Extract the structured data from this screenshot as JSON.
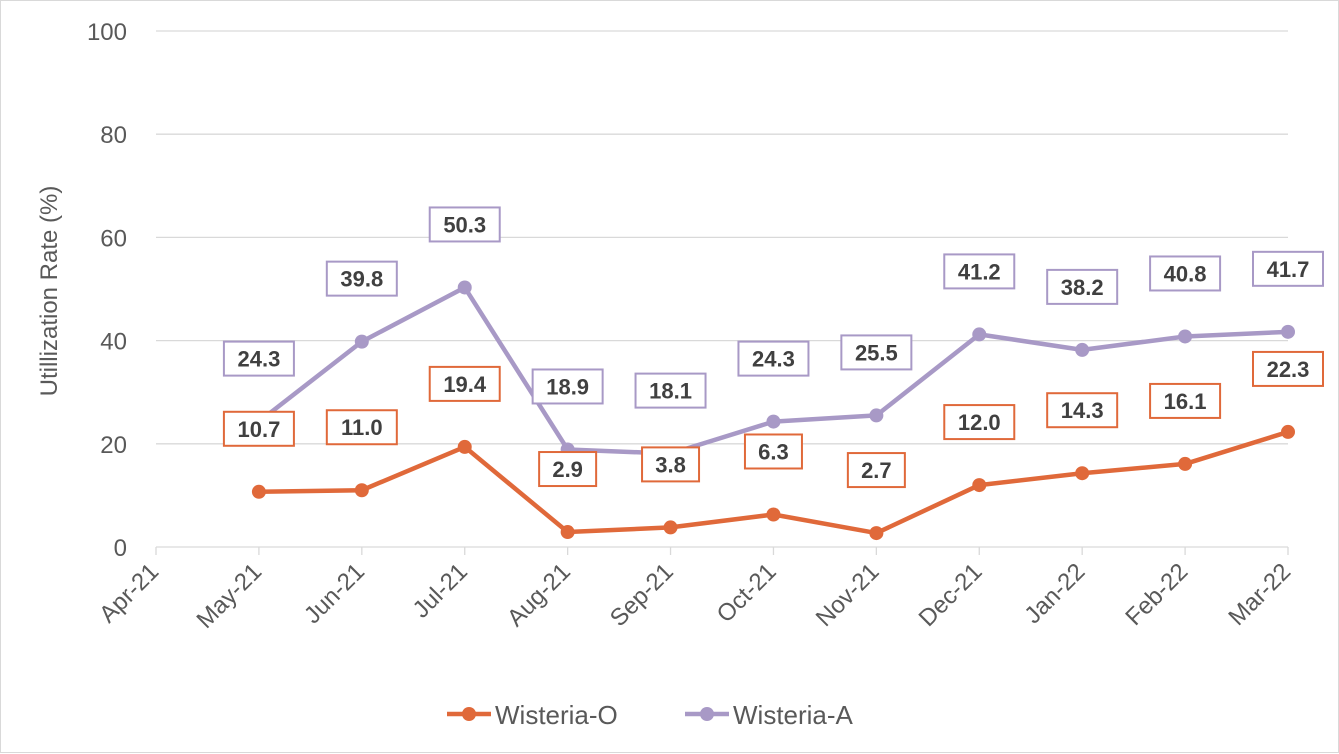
{
  "chart_data": {
    "type": "line",
    "ylabel": "Utillization Rate (%)",
    "xlabel": "",
    "ylim": [
      0,
      100
    ],
    "yticks": [
      0,
      20,
      40,
      60,
      80,
      100
    ],
    "grid": "horizontal",
    "legend_position": "bottom",
    "categories": [
      "Apr-21",
      "May-21",
      "Jun-21",
      "Jul-21",
      "Aug-21",
      "Sep-21",
      "Oct-21",
      "Nov-21",
      "Dec-21",
      "Jan-22",
      "Feb-22",
      "Mar-22"
    ],
    "series": [
      {
        "name": "Wisteria-O",
        "color": "#e0693a",
        "values": [
          null,
          10.7,
          11.0,
          19.4,
          2.9,
          3.8,
          6.3,
          2.7,
          12.0,
          14.3,
          16.1,
          22.3
        ],
        "labels": [
          "",
          "10.7",
          "11.0",
          "19.4",
          "2.9",
          "3.8",
          "6.3",
          "2.7",
          "12.0",
          "14.3",
          "16.1",
          "22.3"
        ]
      },
      {
        "name": "Wisteria-A",
        "color": "#a899c6",
        "values": [
          null,
          24.3,
          39.8,
          50.3,
          18.9,
          18.1,
          24.3,
          25.5,
          41.2,
          38.2,
          40.8,
          41.7
        ],
        "labels": [
          "",
          "24.3",
          "39.8",
          "50.3",
          "18.9",
          "18.1",
          "24.3",
          "25.5",
          "41.2",
          "38.2",
          "40.8",
          "41.7"
        ]
      }
    ]
  }
}
